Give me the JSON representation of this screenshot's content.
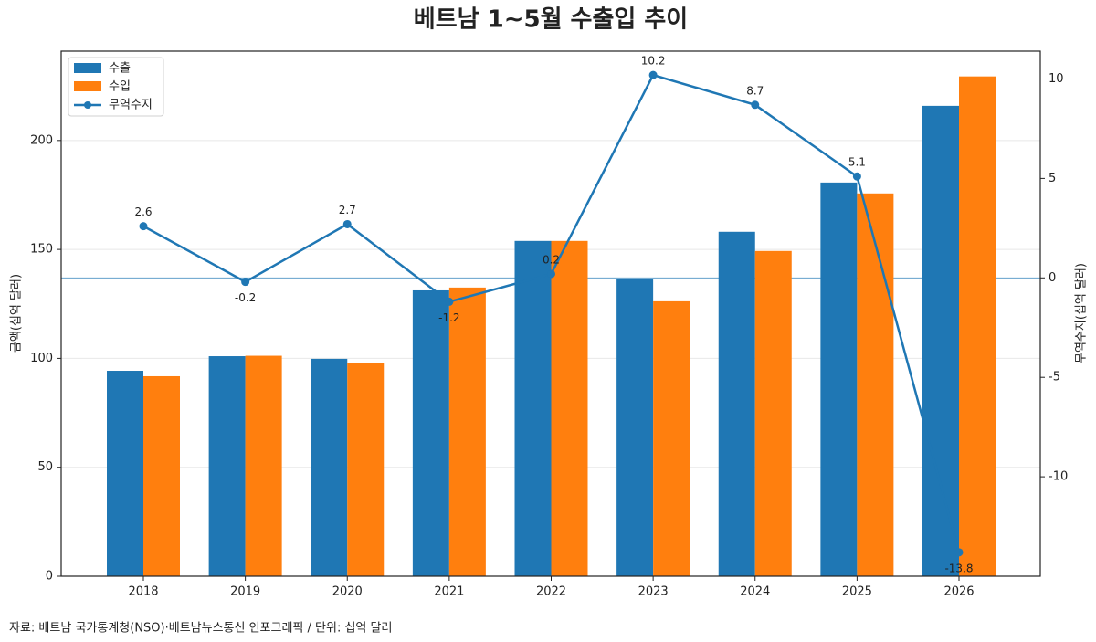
{
  "chart_data": {
    "type": "bar",
    "title": "베트남 1~5월 수출입 추이",
    "categories": [
      "2018",
      "2019",
      "2020",
      "2021",
      "2022",
      "2023",
      "2024",
      "2025",
      "2026"
    ],
    "series": [
      {
        "name": "수출",
        "type": "bar",
        "color": "#1f77b4",
        "values": [
          94.3,
          101.0,
          99.8,
          131.2,
          153.9,
          136.3,
          158.1,
          180.7,
          215.9
        ]
      },
      {
        "name": "수입",
        "type": "bar",
        "color": "#ff7f0e",
        "values": [
          91.8,
          101.2,
          97.7,
          132.5,
          153.9,
          126.2,
          149.3,
          175.7,
          229.4
        ]
      },
      {
        "name": "무역수지",
        "type": "line",
        "axis": "y2",
        "color": "#1f77b4",
        "values": [
          2.6,
          -0.2,
          2.7,
          -1.2,
          0.2,
          10.2,
          8.7,
          5.1,
          -13.8
        ]
      }
    ],
    "ylabel": "금액(십억 달러)",
    "y2label": "무역수지(십억 달러)",
    "ylim": [
      0,
      241
    ],
    "yticks": [
      0,
      50,
      100,
      150,
      200
    ],
    "y2lim": [
      -15,
      11.4
    ],
    "y2ticks": [
      -10,
      -5,
      0,
      5,
      10
    ],
    "grid": true,
    "y2_zero_line": true,
    "legend": "upper-left",
    "note": "자료: 베트남 국가통계청(NSO)·베트남뉴스통신 인포그래픽 / 단위: 십억 달러"
  }
}
